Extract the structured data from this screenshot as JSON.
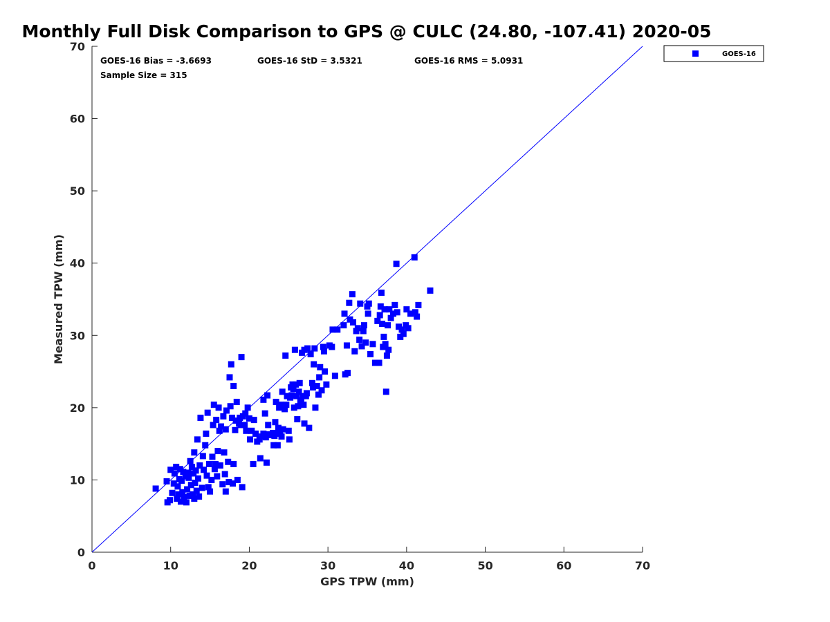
{
  "chart_data": {
    "type": "scatter",
    "title": "Monthly Full Disk Comparison to GPS @ CULC (24.80, -107.41) 2020-05",
    "xlabel": "GPS TPW (mm)",
    "ylabel": "Measured TPW (mm)",
    "xlim": [
      0,
      70
    ],
    "ylim": [
      0,
      70
    ],
    "xticks": [
      "0",
      "10",
      "20",
      "30",
      "40",
      "50",
      "60",
      "70"
    ],
    "yticks": [
      "0",
      "10",
      "20",
      "30",
      "40",
      "50",
      "60",
      "70"
    ],
    "grid": false,
    "legend_position": "top-right",
    "reference_line": {
      "x": [
        0,
        70
      ],
      "y": [
        0,
        70
      ],
      "color": "#0000ff"
    },
    "stats": {
      "bias": "GOES-16 Bias = -3.6693",
      "std": "GOES-16 StD = 3.5321",
      "rms": "GOES-16 RMS = 5.0931",
      "sample": "Sample Size = 315"
    },
    "series": [
      {
        "name": "GOES-16",
        "color": "#0000ff",
        "marker": "square",
        "points": [
          [
            8.1,
            8.8
          ],
          [
            9.5,
            9.8
          ],
          [
            9.6,
            6.9
          ],
          [
            9.9,
            7.2
          ],
          [
            10.0,
            11.4
          ],
          [
            10.2,
            8.2
          ],
          [
            10.4,
            9.5
          ],
          [
            10.5,
            10.9
          ],
          [
            10.7,
            11.8
          ],
          [
            10.8,
            7.4
          ],
          [
            10.9,
            9.1
          ],
          [
            11.0,
            8.0
          ],
          [
            11.1,
            10.1
          ],
          [
            11.2,
            11.5
          ],
          [
            11.3,
            7.0
          ],
          [
            11.4,
            9.9
          ],
          [
            11.5,
            8.3
          ],
          [
            11.6,
            11.1
          ],
          [
            11.7,
            7.6
          ],
          [
            11.9,
            10.5
          ],
          [
            12.0,
            6.9
          ],
          [
            12.1,
            8.7
          ],
          [
            12.2,
            11.0
          ],
          [
            12.3,
            10.3
          ],
          [
            12.4,
            7.8
          ],
          [
            12.5,
            12.6
          ],
          [
            12.6,
            9.3
          ],
          [
            12.7,
            11.8
          ],
          [
            12.8,
            8.0
          ],
          [
            12.9,
            10.9
          ],
          [
            13.0,
            7.4
          ],
          [
            13.0,
            13.8
          ],
          [
            13.1,
            9.6
          ],
          [
            13.2,
            11.3
          ],
          [
            13.3,
            8.5
          ],
          [
            13.4,
            15.6
          ],
          [
            13.5,
            10.2
          ],
          [
            13.6,
            7.7
          ],
          [
            13.7,
            12.0
          ],
          [
            13.8,
            18.6
          ],
          [
            14.0,
            8.9
          ],
          [
            14.1,
            13.3
          ],
          [
            14.2,
            11.4
          ],
          [
            14.4,
            14.8
          ],
          [
            14.5,
            16.4
          ],
          [
            14.6,
            10.6
          ],
          [
            14.7,
            19.3
          ],
          [
            14.8,
            9.0
          ],
          [
            14.9,
            12.2
          ],
          [
            15.0,
            8.4
          ],
          [
            15.2,
            10.0
          ],
          [
            15.3,
            13.2
          ],
          [
            15.4,
            17.6
          ],
          [
            15.5,
            20.4
          ],
          [
            15.6,
            11.5
          ],
          [
            15.7,
            12.2
          ],
          [
            15.8,
            18.3
          ],
          [
            15.9,
            10.5
          ],
          [
            16.0,
            14.0
          ],
          [
            16.1,
            20.0
          ],
          [
            16.2,
            16.8
          ],
          [
            16.3,
            12.0
          ],
          [
            16.4,
            17.4
          ],
          [
            16.6,
            9.4
          ],
          [
            16.7,
            18.8
          ],
          [
            16.8,
            13.8
          ],
          [
            16.9,
            10.8
          ],
          [
            17.0,
            8.4
          ],
          [
            17.0,
            17.0
          ],
          [
            17.1,
            19.6
          ],
          [
            17.3,
            12.5
          ],
          [
            17.4,
            9.7
          ],
          [
            17.5,
            24.2
          ],
          [
            17.6,
            20.2
          ],
          [
            17.7,
            26.0
          ],
          [
            17.8,
            18.6
          ],
          [
            17.9,
            9.5
          ],
          [
            18.0,
            12.2
          ],
          [
            18.0,
            23.0
          ],
          [
            18.2,
            16.9
          ],
          [
            18.3,
            18.2
          ],
          [
            18.4,
            20.8
          ],
          [
            18.5,
            10.0
          ],
          [
            18.7,
            17.8
          ],
          [
            18.8,
            18.6
          ],
          [
            18.9,
            17.6
          ],
          [
            19.0,
            27.0
          ],
          [
            19.1,
            9.0
          ],
          [
            19.2,
            18.8
          ],
          [
            19.4,
            17.6
          ],
          [
            19.5,
            19.2
          ],
          [
            19.6,
            16.8
          ],
          [
            19.8,
            20.0
          ],
          [
            20.0,
            18.5
          ],
          [
            20.1,
            15.6
          ],
          [
            20.3,
            16.8
          ],
          [
            20.5,
            12.2
          ],
          [
            20.6,
            18.3
          ],
          [
            20.8,
            16.4
          ],
          [
            21.0,
            15.3
          ],
          [
            21.3,
            15.6
          ],
          [
            21.4,
            13.0
          ],
          [
            21.6,
            16.0
          ],
          [
            21.8,
            16.4
          ],
          [
            21.8,
            21.1
          ],
          [
            22.0,
            19.2
          ],
          [
            22.1,
            15.9
          ],
          [
            22.2,
            12.4
          ],
          [
            22.3,
            16.3
          ],
          [
            22.4,
            17.6
          ],
          [
            22.3,
            21.7
          ],
          [
            22.7,
            16.2
          ],
          [
            23.0,
            16.5
          ],
          [
            23.1,
            14.8
          ],
          [
            23.2,
            16.1
          ],
          [
            23.3,
            18.0
          ],
          [
            23.4,
            20.8
          ],
          [
            23.5,
            16.4
          ],
          [
            23.6,
            14.8
          ],
          [
            23.7,
            17.2
          ],
          [
            23.8,
            20.0
          ],
          [
            23.9,
            16.8
          ],
          [
            24.0,
            20.4
          ],
          [
            24.1,
            16.0
          ],
          [
            24.2,
            22.2
          ],
          [
            24.3,
            17.0
          ],
          [
            24.5,
            19.8
          ],
          [
            24.6,
            27.2
          ],
          [
            24.7,
            20.4
          ],
          [
            24.8,
            21.6
          ],
          [
            25.0,
            16.8
          ],
          [
            25.1,
            15.6
          ],
          [
            25.2,
            21.4
          ],
          [
            25.3,
            22.8
          ],
          [
            25.4,
            21.7
          ],
          [
            25.5,
            23.2
          ],
          [
            25.6,
            22.6
          ],
          [
            25.7,
            20.0
          ],
          [
            25.8,
            28.0
          ],
          [
            25.9,
            23.2
          ],
          [
            26.0,
            21.6
          ],
          [
            26.1,
            18.4
          ],
          [
            26.2,
            20.2
          ],
          [
            26.3,
            22.2
          ],
          [
            26.4,
            23.4
          ],
          [
            26.5,
            21.0
          ],
          [
            26.6,
            20.8
          ],
          [
            26.7,
            27.6
          ],
          [
            26.8,
            21.6
          ],
          [
            26.9,
            20.4
          ],
          [
            27.0,
            28.0
          ],
          [
            27.0,
            17.8
          ],
          [
            27.2,
            21.6
          ],
          [
            27.3,
            22.0
          ],
          [
            27.4,
            28.2
          ],
          [
            27.6,
            17.2
          ],
          [
            27.8,
            27.4
          ],
          [
            28.0,
            23.4
          ],
          [
            28.1,
            22.8
          ],
          [
            28.2,
            26.0
          ],
          [
            28.3,
            28.2
          ],
          [
            28.4,
            20.0
          ],
          [
            28.6,
            23.0
          ],
          [
            28.8,
            21.8
          ],
          [
            28.9,
            24.2
          ],
          [
            29.0,
            25.6
          ],
          [
            29.2,
            22.4
          ],
          [
            29.4,
            28.4
          ],
          [
            29.5,
            27.8
          ],
          [
            29.6,
            25.0
          ],
          [
            29.8,
            23.2
          ],
          [
            30.2,
            28.6
          ],
          [
            30.5,
            28.4
          ],
          [
            30.6,
            30.8
          ],
          [
            30.9,
            24.4
          ],
          [
            31.2,
            30.8
          ],
          [
            32.0,
            31.4
          ],
          [
            32.1,
            33.0
          ],
          [
            32.2,
            24.6
          ],
          [
            32.4,
            28.6
          ],
          [
            32.5,
            24.8
          ],
          [
            32.7,
            34.5
          ],
          [
            32.8,
            32.2
          ],
          [
            33.1,
            35.7
          ],
          [
            33.2,
            31.8
          ],
          [
            33.4,
            27.8
          ],
          [
            33.6,
            30.6
          ],
          [
            33.8,
            31.0
          ],
          [
            34.0,
            29.4
          ],
          [
            34.1,
            34.4
          ],
          [
            34.3,
            28.5
          ],
          [
            34.5,
            30.6
          ],
          [
            34.6,
            31.4
          ],
          [
            34.8,
            29.0
          ],
          [
            35.0,
            34.0
          ],
          [
            35.1,
            33.0
          ],
          [
            35.2,
            34.4
          ],
          [
            35.4,
            27.4
          ],
          [
            35.7,
            28.8
          ],
          [
            36.0,
            26.2
          ],
          [
            36.3,
            32.0
          ],
          [
            36.5,
            26.2
          ],
          [
            36.6,
            32.8
          ],
          [
            36.7,
            34.0
          ],
          [
            36.8,
            35.9
          ],
          [
            36.9,
            31.6
          ],
          [
            37.0,
            28.4
          ],
          [
            37.1,
            29.8
          ],
          [
            37.2,
            33.6
          ],
          [
            37.3,
            28.8
          ],
          [
            37.4,
            22.2
          ],
          [
            37.5,
            27.2
          ],
          [
            37.6,
            31.4
          ],
          [
            37.7,
            28.0
          ],
          [
            37.8,
            33.6
          ],
          [
            38.0,
            32.4
          ],
          [
            38.3,
            33.0
          ],
          [
            38.5,
            34.2
          ],
          [
            38.7,
            39.9
          ],
          [
            38.8,
            33.2
          ],
          [
            39.0,
            31.2
          ],
          [
            39.2,
            29.8
          ],
          [
            39.4,
            30.8
          ],
          [
            39.6,
            30.2
          ],
          [
            39.9,
            31.4
          ],
          [
            40.0,
            33.6
          ],
          [
            40.2,
            31.0
          ],
          [
            40.5,
            33.0
          ],
          [
            41.0,
            40.8
          ],
          [
            41.1,
            33.2
          ],
          [
            41.3,
            32.6
          ],
          [
            41.5,
            34.2
          ],
          [
            43.0,
            36.2
          ]
        ]
      }
    ]
  }
}
